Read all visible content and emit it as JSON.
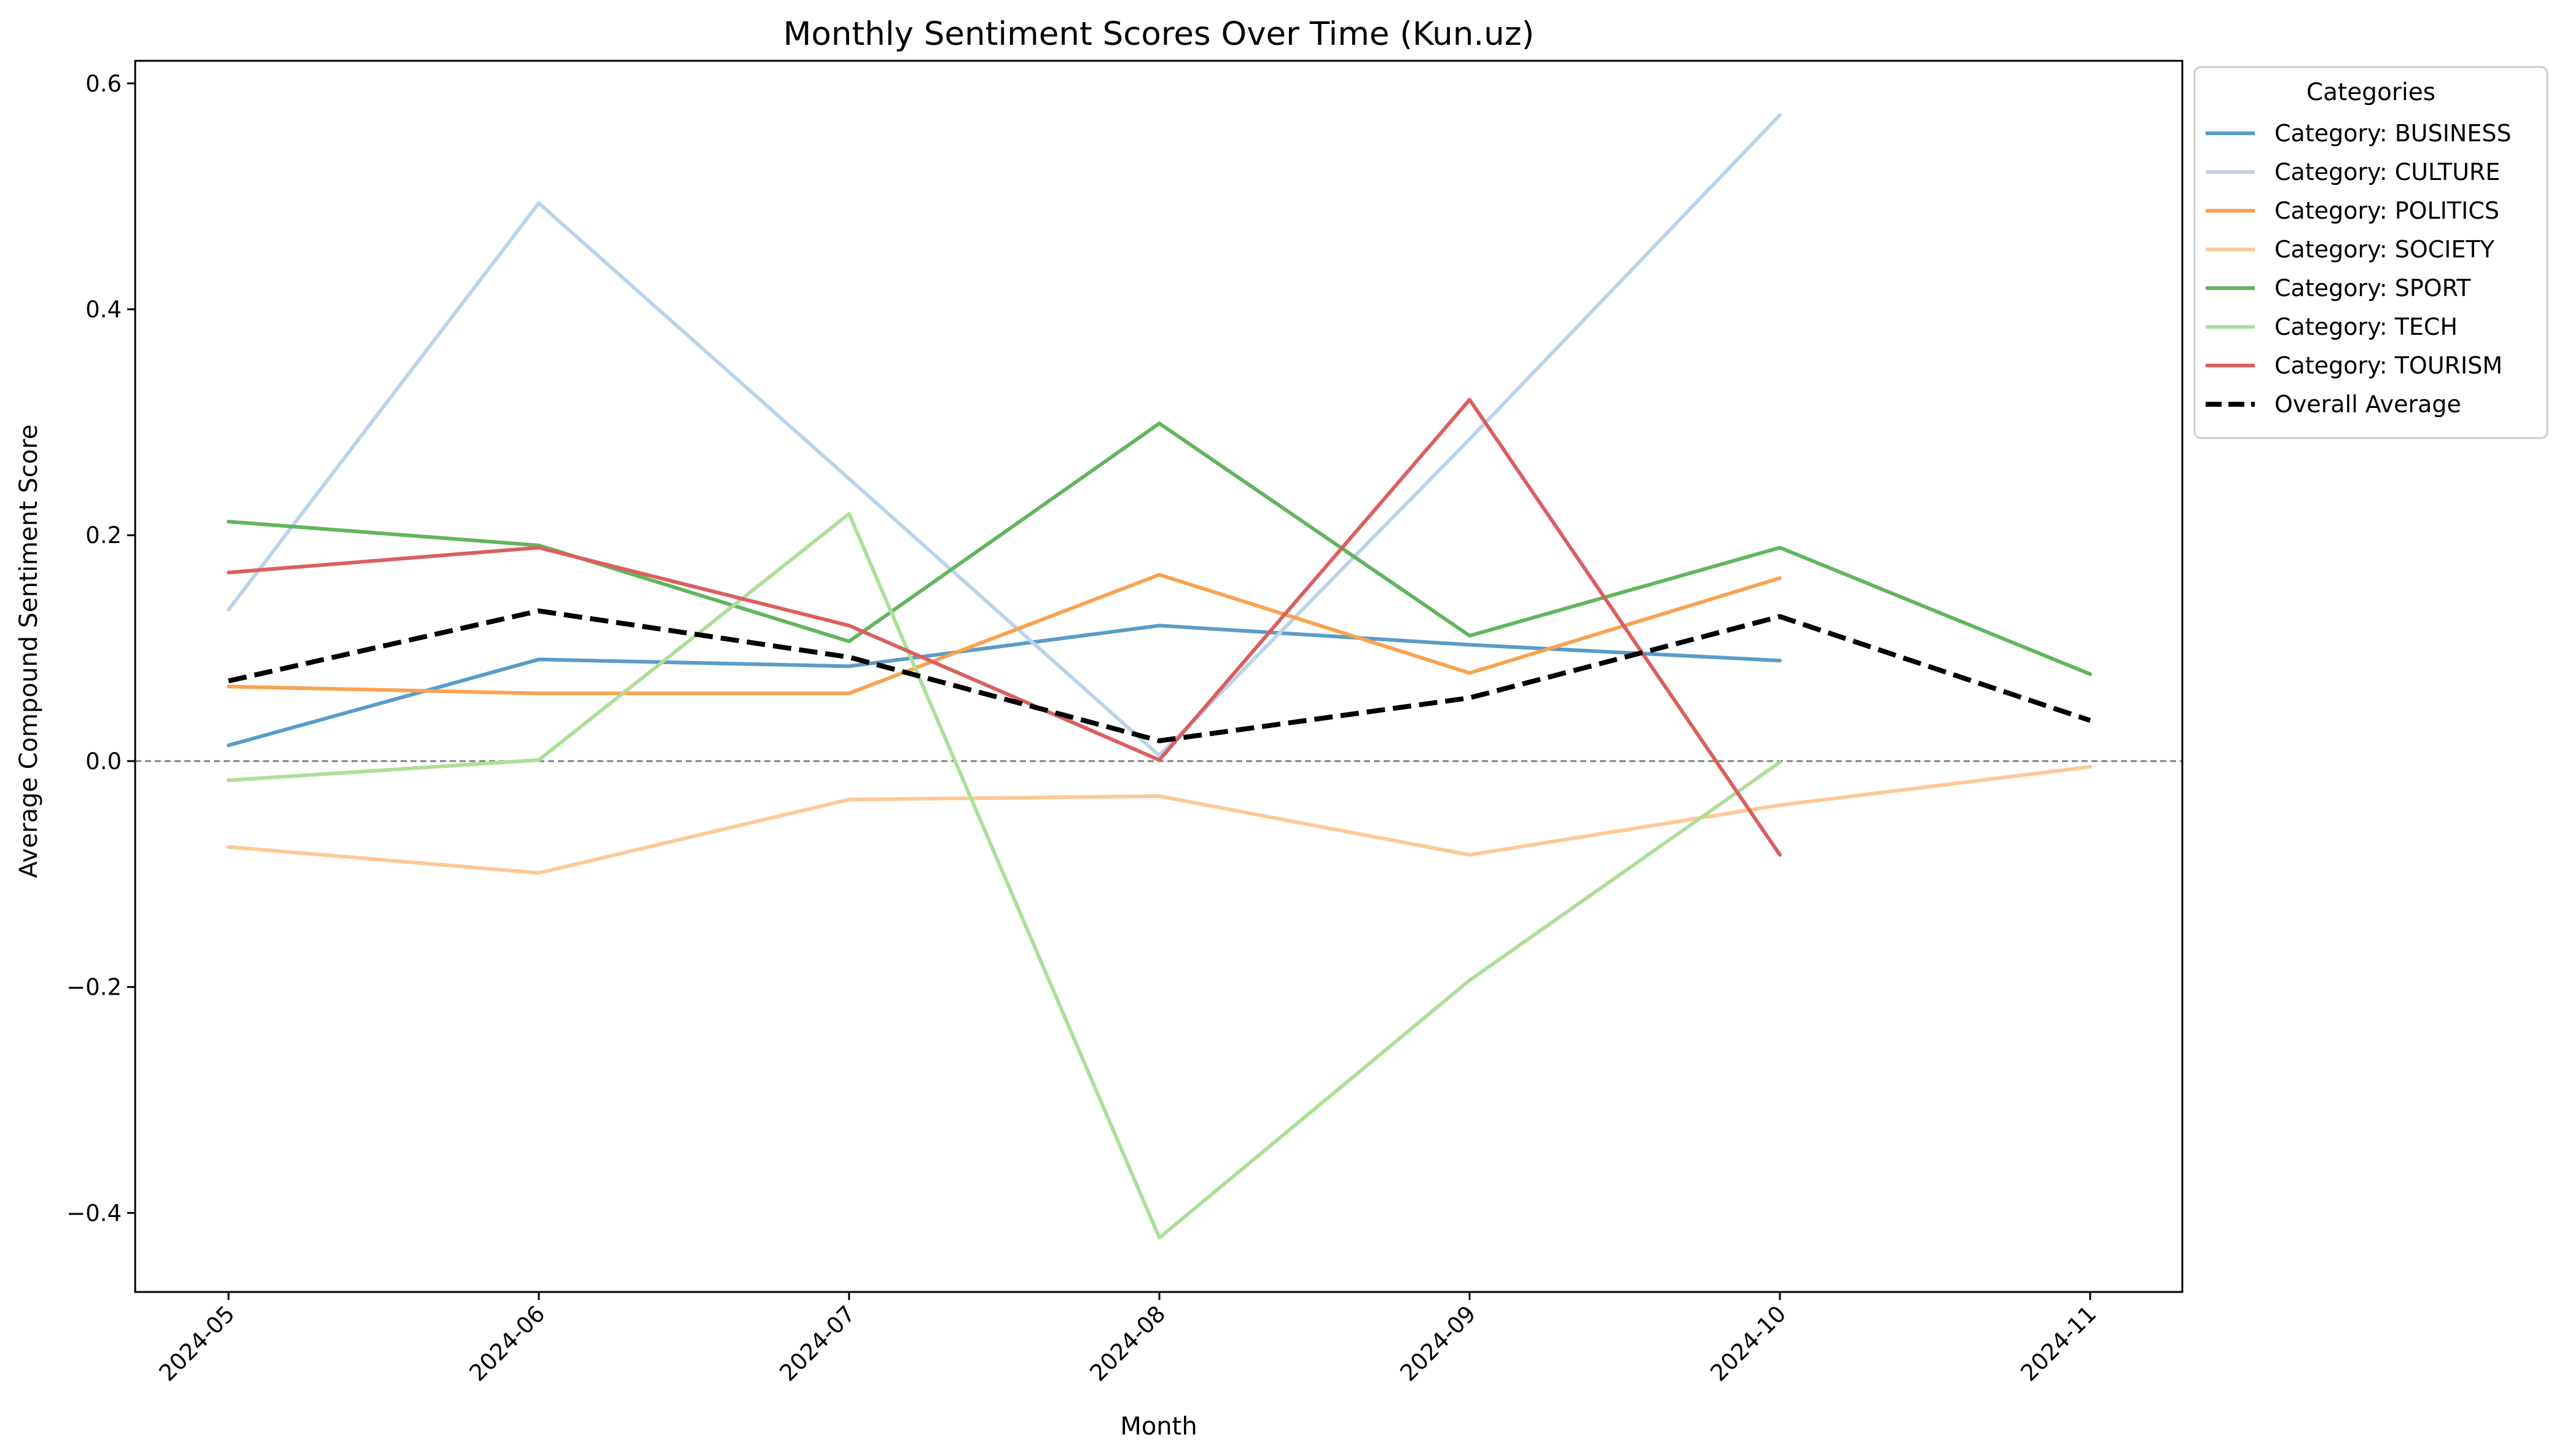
{
  "chart_data": {
    "type": "line",
    "title": "Monthly Sentiment Scores Over Time (Kun.uz)",
    "xlabel": "Month",
    "ylabel": "Average Compound Sentiment Score",
    "categories": [
      "2024-05",
      "2024-06",
      "2024-07",
      "2024-08",
      "2024-09",
      "2024-10",
      "2024-11"
    ],
    "ylim": [
      -0.47,
      0.62
    ],
    "yticks": [
      -0.4,
      -0.2,
      0.0,
      0.2,
      0.4,
      0.6
    ],
    "ytick_labels": [
      "−0.4",
      "−0.2",
      "0.0",
      "0.2",
      "0.4",
      "0.6"
    ],
    "zero_line": true,
    "grid": false,
    "legend": {
      "title": "Categories",
      "placement": "outside-top-right"
    },
    "series": [
      {
        "name": "Category: BUSINESS",
        "color": "#5a9bc9",
        "style": "solid",
        "values": [
          0.014,
          0.09,
          0.084,
          0.12,
          0.103,
          0.089,
          null
        ]
      },
      {
        "name": "Category: CULTURE",
        "color": "#bcd3ea",
        "style": "solid",
        "values": [
          0.134,
          0.494,
          0.25,
          0.005,
          0.285,
          0.572,
          null
        ]
      },
      {
        "name": "Category: POLITICS",
        "color": "#faa24f",
        "style": "solid",
        "values": [
          0.066,
          0.06,
          0.06,
          0.165,
          0.078,
          0.162,
          null
        ]
      },
      {
        "name": "Category: SOCIETY",
        "color": "#fdc996",
        "style": "solid",
        "values": [
          -0.076,
          -0.099,
          -0.034,
          -0.031,
          -0.083,
          -0.039,
          -0.005
        ]
      },
      {
        "name": "Category: SPORT",
        "color": "#62b55e",
        "style": "solid",
        "values": [
          0.212,
          0.191,
          0.106,
          0.299,
          0.111,
          0.189,
          0.077
        ]
      },
      {
        "name": "Category: TECH",
        "color": "#acdf98",
        "style": "solid",
        "values": [
          -0.017,
          0.001,
          0.219,
          -0.422,
          -0.194,
          -0.001,
          null
        ]
      },
      {
        "name": "Category: TOURISM",
        "color": "#da5f5e",
        "style": "solid",
        "values": [
          0.167,
          0.189,
          0.12,
          0.001,
          0.32,
          -0.083,
          null
        ]
      },
      {
        "name": "Overall Average",
        "color": "#000000",
        "style": "dashed",
        "values": [
          0.071,
          0.133,
          0.092,
          0.018,
          0.056,
          0.128,
          0.036
        ]
      }
    ]
  }
}
